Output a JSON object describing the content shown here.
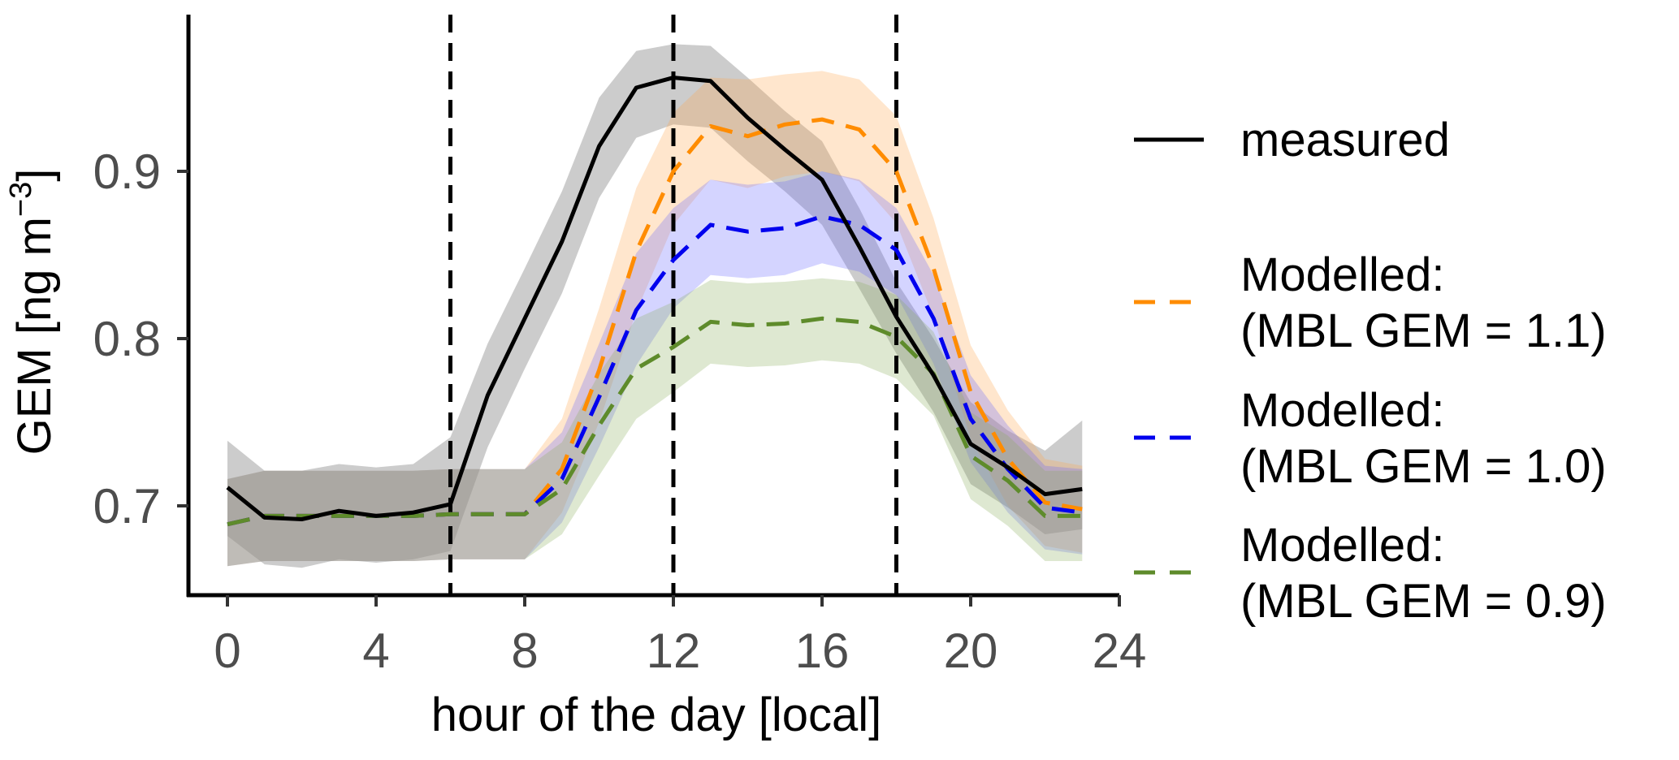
{
  "chart_data": {
    "type": "line",
    "xlabel": "hour of the day [local]",
    "ylabel": {
      "main": "GEM [ng m",
      "sup": "−3",
      "close": "]"
    },
    "xlim": [
      -1.1,
      24.1
    ],
    "ylim": [
      0.645,
      0.99
    ],
    "x_ticks": [
      0,
      4,
      8,
      12,
      16,
      20,
      24
    ],
    "y_ticks": [
      0.7,
      0.8,
      0.9
    ],
    "y_tick_labels": [
      "0.7",
      "0.8",
      "0.9"
    ],
    "grid": false,
    "legend_position": "right",
    "vlines": [
      6,
      12,
      18
    ],
    "x": [
      0,
      1,
      2,
      3,
      4,
      5,
      6,
      7,
      8,
      9,
      10,
      11,
      12,
      13,
      14,
      15,
      16,
      17,
      18,
      19,
      20,
      21,
      22,
      23
    ],
    "series": [
      {
        "name": "measured",
        "color": "#000000",
        "band_color": "#808080",
        "dash": "solid",
        "values": [
          0.711,
          0.693,
          0.692,
          0.697,
          0.694,
          0.696,
          0.701,
          0.766,
          0.812,
          0.858,
          0.915,
          0.95,
          0.956,
          0.954,
          0.932,
          0.913,
          0.895,
          0.855,
          0.813,
          0.778,
          0.737,
          0.723,
          0.707,
          0.71
        ],
        "lower": [
          0.682,
          0.665,
          0.663,
          0.668,
          0.666,
          0.668,
          0.673,
          0.735,
          0.782,
          0.827,
          0.884,
          0.92,
          0.928,
          0.926,
          0.906,
          0.888,
          0.868,
          0.83,
          0.791,
          0.756,
          0.713,
          0.699,
          0.683,
          0.686
        ],
        "upper": [
          0.739,
          0.721,
          0.721,
          0.725,
          0.723,
          0.725,
          0.741,
          0.797,
          0.842,
          0.888,
          0.944,
          0.972,
          0.976,
          0.975,
          0.956,
          0.936,
          0.918,
          0.878,
          0.834,
          0.8,
          0.762,
          0.745,
          0.733,
          0.751
        ]
      },
      {
        "name": "Modelled:\n(MBL GEM = 1.1)",
        "color": "#ff8c00",
        "band_color": "#ffa64d",
        "dash": "long",
        "values": [
          0.689,
          0.694,
          0.694,
          0.694,
          0.694,
          0.694,
          0.695,
          0.695,
          0.695,
          0.722,
          0.781,
          0.852,
          0.9,
          0.927,
          0.921,
          0.928,
          0.931,
          0.925,
          0.9,
          0.842,
          0.768,
          0.728,
          0.702,
          0.698
        ],
        "lower": [
          0.664,
          0.667,
          0.667,
          0.667,
          0.667,
          0.667,
          0.668,
          0.668,
          0.668,
          0.696,
          0.75,
          0.816,
          0.868,
          0.895,
          0.89,
          0.897,
          0.9,
          0.894,
          0.869,
          0.813,
          0.74,
          0.7,
          0.676,
          0.672
        ],
        "upper": [
          0.716,
          0.721,
          0.721,
          0.721,
          0.721,
          0.721,
          0.722,
          0.722,
          0.722,
          0.752,
          0.818,
          0.89,
          0.935,
          0.956,
          0.955,
          0.958,
          0.96,
          0.955,
          0.933,
          0.872,
          0.796,
          0.757,
          0.728,
          0.724
        ]
      },
      {
        "name": "Modelled:\n(MBL GEM = 1.0)",
        "color": "#0000ee",
        "band_color": "#6666ff",
        "dash": "long",
        "values": [
          0.689,
          0.694,
          0.694,
          0.694,
          0.694,
          0.694,
          0.695,
          0.695,
          0.695,
          0.716,
          0.765,
          0.817,
          0.847,
          0.868,
          0.864,
          0.866,
          0.873,
          0.868,
          0.853,
          0.812,
          0.752,
          0.722,
          0.699,
          0.696
        ],
        "lower": [
          0.664,
          0.667,
          0.667,
          0.667,
          0.667,
          0.667,
          0.668,
          0.668,
          0.668,
          0.69,
          0.735,
          0.784,
          0.818,
          0.838,
          0.836,
          0.838,
          0.845,
          0.84,
          0.826,
          0.785,
          0.726,
          0.696,
          0.674,
          0.671
        ],
        "upper": [
          0.716,
          0.721,
          0.721,
          0.721,
          0.721,
          0.721,
          0.722,
          0.722,
          0.722,
          0.744,
          0.797,
          0.851,
          0.878,
          0.895,
          0.892,
          0.894,
          0.9,
          0.895,
          0.878,
          0.838,
          0.778,
          0.748,
          0.724,
          0.722
        ]
      },
      {
        "name": "Modelled:\n(MBL GEM = 0.9)",
        "color": "#5e8b2b",
        "band_color": "#8aab5a",
        "dash": "long",
        "values": [
          0.689,
          0.694,
          0.694,
          0.694,
          0.694,
          0.694,
          0.695,
          0.695,
          0.695,
          0.71,
          0.748,
          0.782,
          0.795,
          0.81,
          0.808,
          0.809,
          0.812,
          0.81,
          0.801,
          0.779,
          0.73,
          0.715,
          0.694,
          0.694
        ],
        "lower": [
          0.664,
          0.667,
          0.667,
          0.667,
          0.667,
          0.667,
          0.668,
          0.668,
          0.668,
          0.683,
          0.718,
          0.752,
          0.768,
          0.785,
          0.783,
          0.784,
          0.787,
          0.785,
          0.776,
          0.754,
          0.704,
          0.688,
          0.667,
          0.667
        ],
        "upper": [
          0.716,
          0.721,
          0.721,
          0.721,
          0.721,
          0.721,
          0.722,
          0.722,
          0.722,
          0.738,
          0.779,
          0.812,
          0.822,
          0.835,
          0.833,
          0.834,
          0.836,
          0.834,
          0.826,
          0.804,
          0.756,
          0.742,
          0.721,
          0.721
        ]
      }
    ]
  }
}
